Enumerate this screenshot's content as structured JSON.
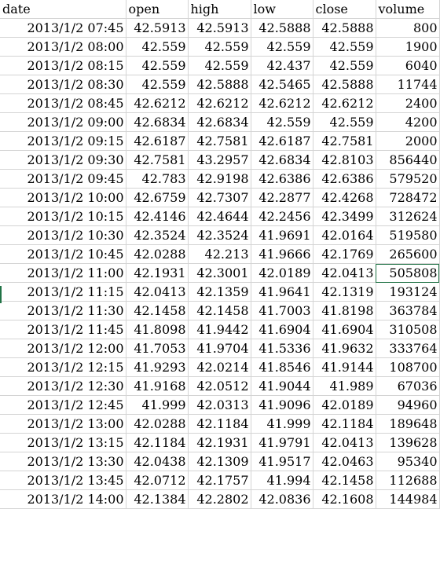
{
  "sheet": {
    "columns": [
      "date",
      "open",
      "high",
      "low",
      "close",
      "volume"
    ],
    "rows": [
      [
        "2013/1/2 07:45",
        "42.5913",
        "42.5913",
        "42.5888",
        "42.5888",
        "800"
      ],
      [
        "2013/1/2 08:00",
        "42.559",
        "42.559",
        "42.559",
        "42.559",
        "1900"
      ],
      [
        "2013/1/2 08:15",
        "42.559",
        "42.559",
        "42.437",
        "42.559",
        "6040"
      ],
      [
        "2013/1/2 08:30",
        "42.559",
        "42.5888",
        "42.5465",
        "42.5888",
        "11744"
      ],
      [
        "2013/1/2 08:45",
        "42.6212",
        "42.6212",
        "42.6212",
        "42.6212",
        "2400"
      ],
      [
        "2013/1/2 09:00",
        "42.6834",
        "42.6834",
        "42.559",
        "42.559",
        "4200"
      ],
      [
        "2013/1/2 09:15",
        "42.6187",
        "42.7581",
        "42.6187",
        "42.7581",
        "2000"
      ],
      [
        "2013/1/2 09:30",
        "42.7581",
        "43.2957",
        "42.6834",
        "42.8103",
        "856440"
      ],
      [
        "2013/1/2 09:45",
        "42.783",
        "42.9198",
        "42.6386",
        "42.6386",
        "579520"
      ],
      [
        "2013/1/2 10:00",
        "42.6759",
        "42.7307",
        "42.2877",
        "42.4268",
        "728472"
      ],
      [
        "2013/1/2 10:15",
        "42.4146",
        "42.4644",
        "42.2456",
        "42.3499",
        "312624"
      ],
      [
        "2013/1/2 10:30",
        "42.3524",
        "42.3524",
        "41.9691",
        "42.0164",
        "519580"
      ],
      [
        "2013/1/2 10:45",
        "42.0288",
        "42.213",
        "41.9666",
        "42.1769",
        "265600"
      ],
      [
        "2013/1/2 11:00",
        "42.1931",
        "42.3001",
        "42.0189",
        "42.0413",
        "505808"
      ],
      [
        "2013/1/2 11:15",
        "42.0413",
        "42.1359",
        "41.9641",
        "42.1319",
        "193124"
      ],
      [
        "2013/1/2 11:30",
        "42.1458",
        "42.1458",
        "41.7003",
        "41.8198",
        "363784"
      ],
      [
        "2013/1/2 11:45",
        "41.8098",
        "41.9442",
        "41.6904",
        "41.6904",
        "310508"
      ],
      [
        "2013/1/2 12:00",
        "41.7053",
        "41.9704",
        "41.5336",
        "41.9632",
        "333764"
      ],
      [
        "2013/1/2 12:15",
        "41.9293",
        "42.0214",
        "41.8546",
        "41.9144",
        "108700"
      ],
      [
        "2013/1/2 12:30",
        "41.9168",
        "42.0512",
        "41.9044",
        "41.989",
        "67036"
      ],
      [
        "2013/1/2 12:45",
        "41.999",
        "42.0313",
        "41.9096",
        "42.0189",
        "94960"
      ],
      [
        "2013/1/2 13:00",
        "42.0288",
        "42.1184",
        "41.999",
        "42.1184",
        "189648"
      ],
      [
        "2013/1/2 13:15",
        "42.1184",
        "42.1931",
        "41.9791",
        "42.0413",
        "139628"
      ],
      [
        "2013/1/2 13:30",
        "42.0438",
        "42.1309",
        "41.9517",
        "42.0463",
        "95340"
      ],
      [
        "2013/1/2 13:45",
        "42.0712",
        "42.1757",
        "41.994",
        "42.1458",
        "112688"
      ],
      [
        "2013/1/2 14:00",
        "42.1384",
        "42.2802",
        "42.0836",
        "42.1608",
        "144984"
      ]
    ]
  },
  "colors": {
    "gridline": "#d4d4d4",
    "selection": "#217346",
    "text": "#000000"
  }
}
